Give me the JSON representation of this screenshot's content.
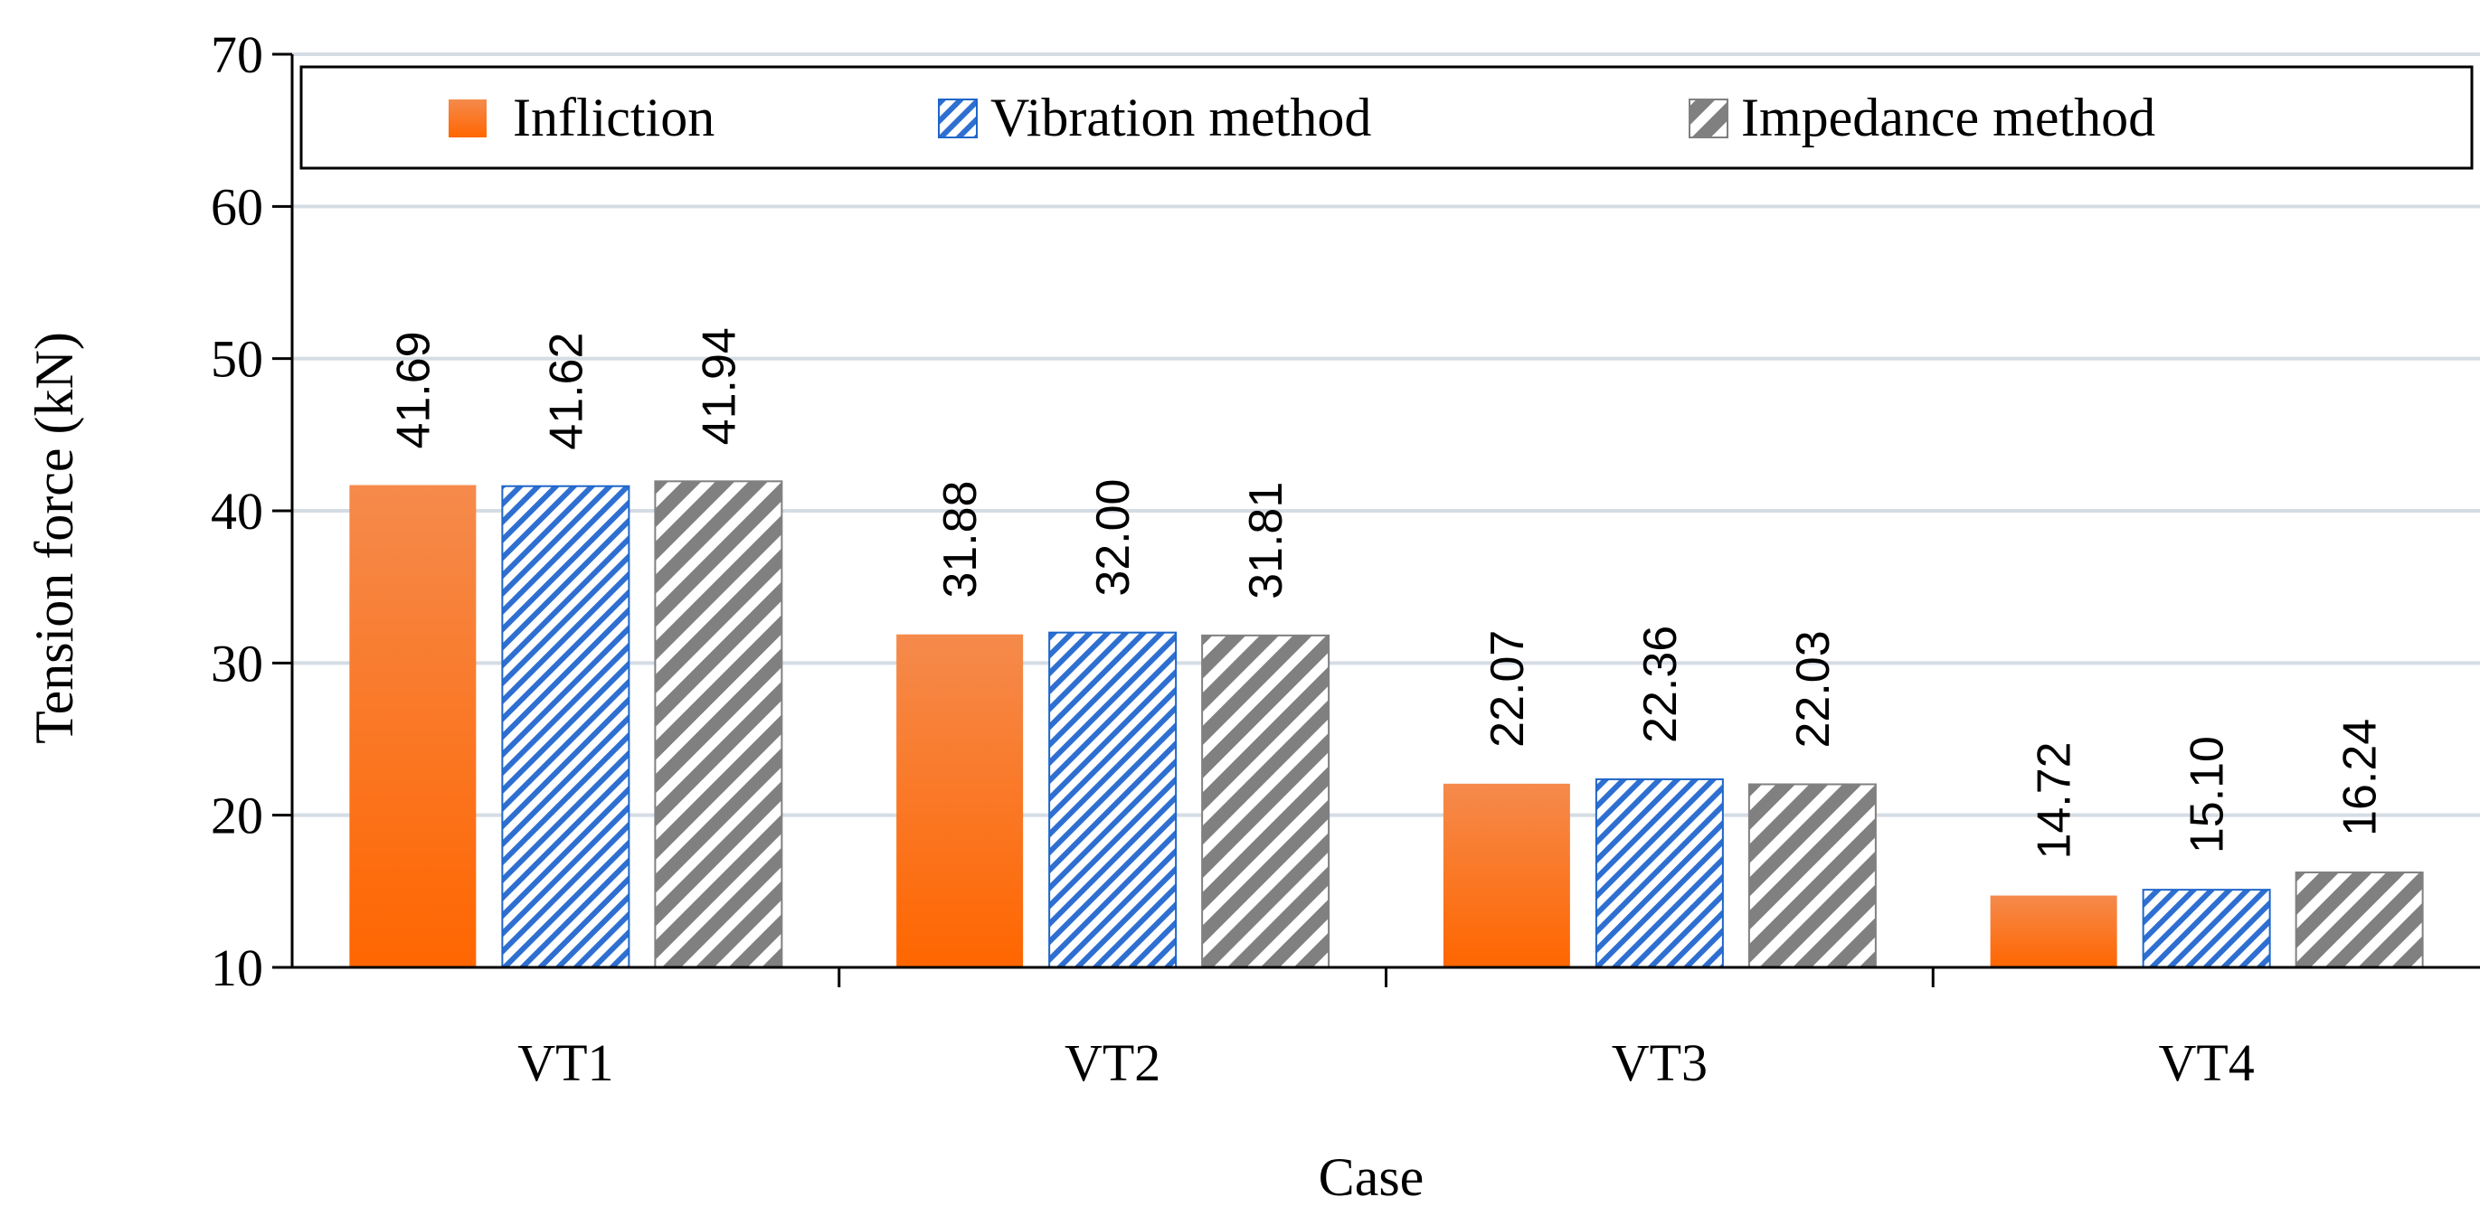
{
  "chart_data": {
    "type": "bar",
    "title": "",
    "xlabel": "Case",
    "ylabel": "Tension force (kN)",
    "ylim": [
      10,
      70
    ],
    "yticks": [
      10,
      20,
      30,
      40,
      50,
      60,
      70
    ],
    "grid": true,
    "legend_position": "top",
    "categories": [
      "VT1",
      "VT2",
      "VT3",
      "VT4"
    ],
    "series": [
      {
        "name": "Infliction",
        "values": [
          41.69,
          31.88,
          22.07,
          14.72
        ],
        "labels": [
          "41.69",
          "31.88",
          "22.07",
          "14.72"
        ],
        "color": "#f26a1b",
        "pattern": "solid-gradient"
      },
      {
        "name": "Vibration method",
        "values": [
          41.62,
          32.0,
          22.36,
          15.1
        ],
        "labels": [
          "41.62",
          "32.00",
          "22.36",
          "15.10"
        ],
        "color": "#1f66c9",
        "pattern": "fine-diagonal-hatch"
      },
      {
        "name": "Impedance method",
        "values": [
          41.94,
          31.81,
          22.03,
          16.24
        ],
        "labels": [
          "41.94",
          "31.81",
          "22.03",
          "16.24"
        ],
        "color": "#7f7f7f",
        "pattern": "wide-diagonal-stripe"
      }
    ]
  }
}
